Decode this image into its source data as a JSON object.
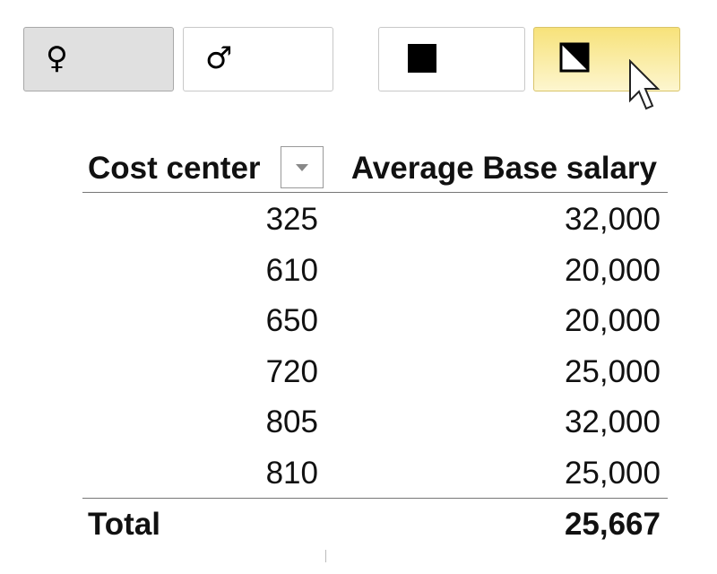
{
  "slicer": {
    "buttons": [
      "♀",
      "♂"
    ]
  },
  "table": {
    "header": [
      "Cost center",
      "Average Base salary"
    ],
    "rows": [
      [
        "325",
        "32,000"
      ],
      [
        "610",
        "20,000"
      ],
      [
        "650",
        "20,000"
      ],
      [
        "720",
        "25,000"
      ],
      [
        "805",
        "32,000"
      ],
      [
        "810",
        "25,000"
      ]
    ],
    "total": [
      "Total",
      "25,667"
    ]
  }
}
